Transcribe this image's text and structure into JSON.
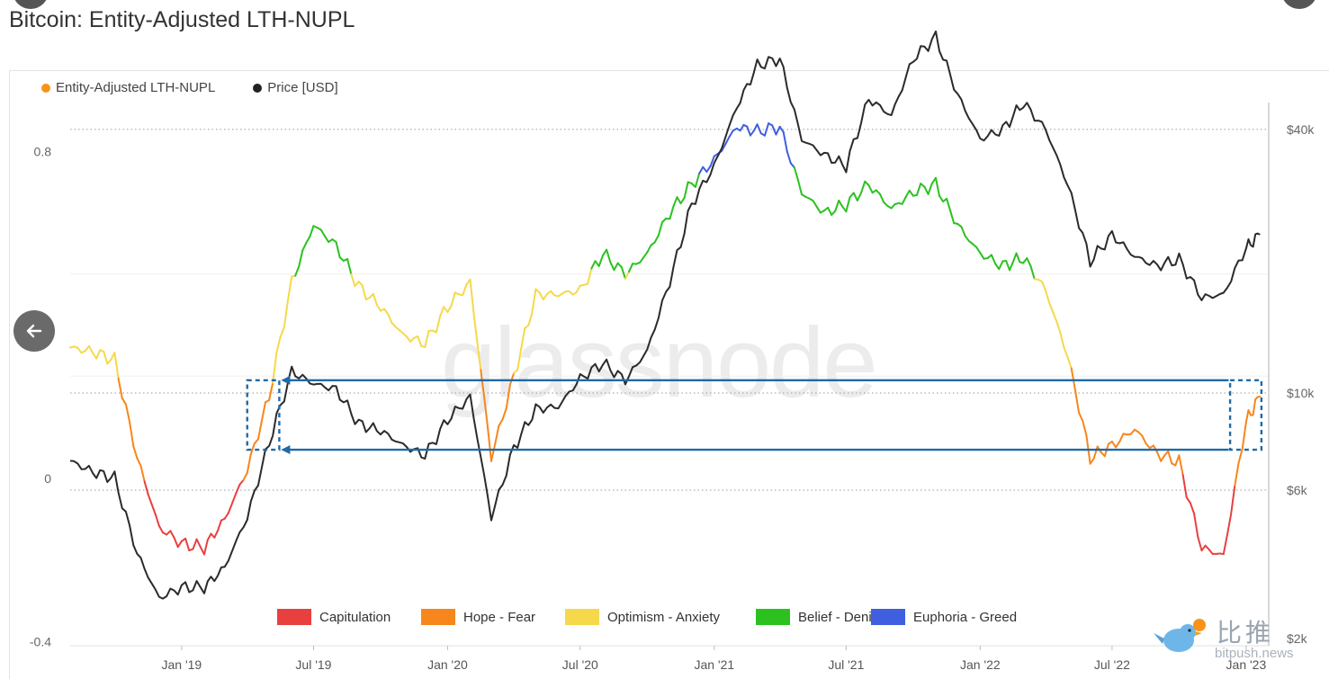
{
  "page": {
    "title": "Bitcoin: Entity-Adjusted LTH-NUPL",
    "watermark": "glassnode",
    "brand_cn": "比推",
    "brand_site": "bitpush.news"
  },
  "chart_data": {
    "type": "line",
    "title": "Bitcoin: Entity-Adjusted LTH-NUPL",
    "series": [
      {
        "name": "Entity-Adjusted LTH-NUPL",
        "color": "#f7931a",
        "axis": "left",
        "x": [
          "2018-08-01",
          "2018-09-01",
          "2018-10-01",
          "2018-11-01",
          "2018-12-01",
          "2019-01-01",
          "2019-02-01",
          "2019-03-01",
          "2019-04-01",
          "2019-05-01",
          "2019-06-01",
          "2019-07-01",
          "2019-08-01",
          "2019-09-01",
          "2019-10-01",
          "2019-11-01",
          "2019-12-01",
          "2020-01-01",
          "2020-02-01",
          "2020-03-01",
          "2020-04-01",
          "2020-05-01",
          "2020-06-01",
          "2020-07-01",
          "2020-08-01",
          "2020-09-01",
          "2020-10-01",
          "2020-11-01",
          "2020-12-01",
          "2021-01-01",
          "2021-02-01",
          "2021-03-01",
          "2021-04-01",
          "2021-05-01",
          "2021-06-01",
          "2021-07-01",
          "2021-08-01",
          "2021-09-01",
          "2021-10-01",
          "2021-11-01",
          "2021-12-01",
          "2022-01-01",
          "2022-02-01",
          "2022-03-01",
          "2022-04-01",
          "2022-05-01",
          "2022-06-01",
          "2022-07-01",
          "2022-08-01",
          "2022-09-01",
          "2022-10-01",
          "2022-11-01",
          "2022-12-01",
          "2023-01-01",
          "2023-01-20"
        ],
        "y": [
          0.32,
          0.31,
          0.29,
          0.05,
          -0.12,
          -0.16,
          -0.17,
          -0.1,
          0.02,
          0.2,
          0.48,
          0.62,
          0.57,
          0.47,
          0.42,
          0.35,
          0.33,
          0.42,
          0.48,
          0.05,
          0.25,
          0.45,
          0.45,
          0.46,
          0.55,
          0.5,
          0.55,
          0.65,
          0.72,
          0.78,
          0.86,
          0.85,
          0.86,
          0.7,
          0.65,
          0.67,
          0.72,
          0.66,
          0.7,
          0.72,
          0.62,
          0.55,
          0.52,
          0.54,
          0.46,
          0.3,
          0.05,
          0.08,
          0.12,
          0.06,
          0.04,
          -0.17,
          -0.19,
          0.14,
          0.2
        ]
      },
      {
        "name": "Price [USD]",
        "color": "#2b2b2b",
        "axis": "right",
        "x": [
          "2018-08-01",
          "2018-09-01",
          "2018-10-01",
          "2018-11-01",
          "2018-12-01",
          "2019-01-01",
          "2019-02-01",
          "2019-03-01",
          "2019-04-01",
          "2019-05-01",
          "2019-06-01",
          "2019-07-01",
          "2019-08-01",
          "2019-09-01",
          "2019-10-01",
          "2019-11-01",
          "2019-12-01",
          "2020-01-01",
          "2020-02-01",
          "2020-03-01",
          "2020-04-01",
          "2020-05-01",
          "2020-06-01",
          "2020-07-01",
          "2020-08-01",
          "2020-09-01",
          "2020-10-01",
          "2020-11-01",
          "2020-12-01",
          "2021-01-01",
          "2021-02-01",
          "2021-03-01",
          "2021-04-01",
          "2021-05-01",
          "2021-06-01",
          "2021-07-01",
          "2021-08-01",
          "2021-09-01",
          "2021-10-01",
          "2021-11-01",
          "2021-12-01",
          "2022-01-01",
          "2022-02-01",
          "2022-03-01",
          "2022-04-01",
          "2022-05-01",
          "2022-06-01",
          "2022-07-01",
          "2022-08-01",
          "2022-09-01",
          "2022-10-01",
          "2022-11-01",
          "2022-12-01",
          "2023-01-01",
          "2023-01-20"
        ],
        "y": [
          7000,
          6600,
          6400,
          4300,
          3400,
          3600,
          3600,
          4000,
          5200,
          7700,
          11200,
          10500,
          10200,
          8500,
          8200,
          7600,
          7200,
          8700,
          9800,
          5200,
          7500,
          9200,
          9300,
          10800,
          11700,
          10700,
          12500,
          18000,
          27000,
          33000,
          45000,
          56000,
          58000,
          38000,
          35000,
          33000,
          47000,
          43000,
          58000,
          65000,
          48000,
          38000,
          40000,
          46000,
          40000,
          30000,
          20000,
          23000,
          20500,
          19500,
          20200,
          16500,
          16800,
          21500,
          23000
        ]
      }
    ],
    "y_left": {
      "ticks": [
        0.8,
        0,
        -0.4
      ],
      "tick_labels": [
        "0.8",
        "0",
        "-0.4"
      ],
      "range": [
        -0.41,
        0.92
      ]
    },
    "y_right": {
      "ticks": [
        40000,
        10000,
        6000,
        2000
      ],
      "tick_labels": [
        "$40k",
        "$10k",
        "$6k",
        "$2k"
      ],
      "scale": "log"
    },
    "x_axis": {
      "range": [
        "2018-08-01",
        "2023-02-01"
      ],
      "ticks": [
        "2019-01-01",
        "2019-07-01",
        "2020-01-01",
        "2020-07-01",
        "2021-01-01",
        "2021-07-01",
        "2022-01-01",
        "2022-07-01",
        "2023-01-01"
      ],
      "tick_labels": [
        "Jan '19",
        "Jul '19",
        "Jan '20",
        "Jul '20",
        "Jan '21",
        "Jul '21",
        "Jan '22",
        "Jul '22",
        "Jan '23"
      ]
    },
    "regimes": [
      {
        "label": "Capitulation",
        "color": "#e8403f",
        "below": 0
      },
      {
        "label": "Hope - Fear",
        "color": "#f7861c",
        "from": 0,
        "to": 0.25
      },
      {
        "label": "Optimism - Anxiety",
        "color": "#f5d94b",
        "from": 0.25,
        "to": 0.5
      },
      {
        "label": "Belief - Denial",
        "color": "#2bc21f",
        "from": 0.5,
        "to": 0.75
      },
      {
        "label": "Euphoria - Greed",
        "color": "#3f5fe0",
        "above": 0.75
      }
    ],
    "grid": true,
    "legend": "top-left",
    "annotations": {
      "boxes": [
        {
          "x": [
            "2019-04-01",
            "2019-05-15"
          ],
          "y": [
            0.07,
            0.24
          ]
        },
        {
          "x": [
            "2022-12-10",
            "2023-01-22"
          ],
          "y": [
            0.07,
            0.24
          ]
        }
      ],
      "arrows": [
        {
          "from_x": "2022-12-08",
          "to_x": "2019-05-15",
          "y": 0.24
        },
        {
          "from_x": "2022-12-08",
          "to_x": "2019-05-15",
          "y": 0.07
        }
      ],
      "color": "#1f6aa8"
    }
  }
}
